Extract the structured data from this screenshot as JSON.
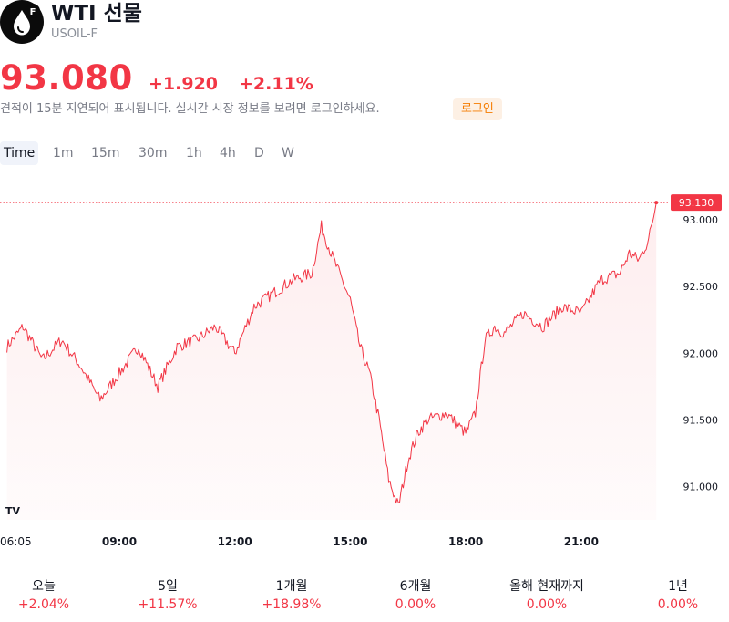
{
  "header": {
    "title": "WTI 선물",
    "symbol": "USOIL-F",
    "logo_letter": "F"
  },
  "quote": {
    "price": "93.080",
    "change": "+1.920",
    "change_percent": "+2.11%"
  },
  "notice": {
    "text": "견적이 15분 지연되어 표시됩니다. 실시간 시장 정보를 보려면 로그인하세요.",
    "login_label": "로그인"
  },
  "tabs": [
    "Time",
    "1m",
    "15m",
    "30m",
    "1h",
    "4h",
    "D",
    "W"
  ],
  "colors": {
    "accent": "#f23645",
    "login_bg": "#fdf0e4",
    "login_text": "#f57c00"
  },
  "chart_data": {
    "type": "area",
    "x_tick_labels": [
      "06:05",
      "09:00",
      "12:00",
      "15:00",
      "18:00",
      "21:00"
    ],
    "y_tick_labels": [
      "93.000",
      "92.500",
      "92.000",
      "91.500",
      "91.000"
    ],
    "ylim": [
      90.75,
      93.35
    ],
    "last_value_label": "93.130",
    "last_value": 93.13,
    "x_hours": [
      6.08,
      6.5,
      7.0,
      7.5,
      8.0,
      8.5,
      9.0,
      9.5,
      10.0,
      10.5,
      11.0,
      11.5,
      12.0,
      12.5,
      13.0,
      13.5,
      14.0,
      14.25,
      14.5,
      15.0,
      15.25,
      15.5,
      15.75,
      16.0,
      16.25,
      16.5,
      16.75,
      17.0,
      17.5,
      18.0,
      18.25,
      18.5,
      18.75,
      19.0,
      19.5,
      20.0,
      20.5,
      21.0,
      21.5,
      22.0,
      22.25,
      22.5,
      22.75,
      22.95
    ],
    "values": [
      92.05,
      92.2,
      91.95,
      92.1,
      91.9,
      91.65,
      91.85,
      92.05,
      91.75,
      92.05,
      92.1,
      92.2,
      92.0,
      92.35,
      92.45,
      92.55,
      92.6,
      92.95,
      92.75,
      92.4,
      92.05,
      91.85,
      91.5,
      91.05,
      90.85,
      91.2,
      91.4,
      91.5,
      91.55,
      91.4,
      91.55,
      92.1,
      92.2,
      92.15,
      92.3,
      92.2,
      92.35,
      92.3,
      92.55,
      92.6,
      92.75,
      92.7,
      92.85,
      93.13
    ]
  },
  "periods": [
    {
      "label": "오늘",
      "value": "+2.04%"
    },
    {
      "label": "5일",
      "value": "+11.57%"
    },
    {
      "label": "1개월",
      "value": "+18.98%"
    },
    {
      "label": "6개월",
      "value": "0.00%"
    },
    {
      "label": "올해 현재까지",
      "value": "0.00%"
    },
    {
      "label": "1년",
      "value": "0.00%"
    }
  ]
}
